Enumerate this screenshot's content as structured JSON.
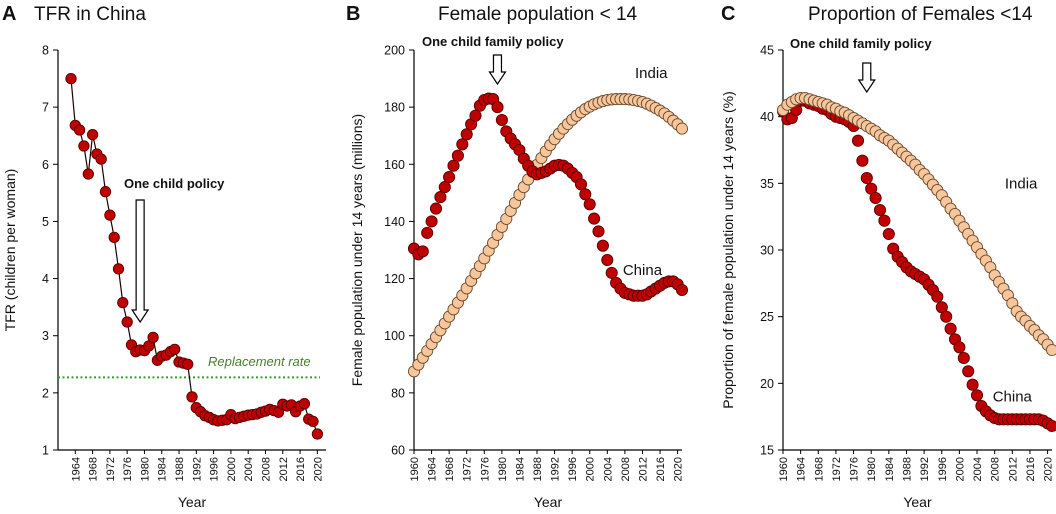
{
  "colors": {
    "china_fill": "#c00000",
    "china_edge": "#5a0000",
    "india_fill": "#f7c69a",
    "india_edge": "#6b4a30",
    "replacement_line": "#2ca02c",
    "replacement_text": "#4a7f2a",
    "axis": "#000000"
  },
  "panels": [
    {
      "letter": "A",
      "title": "TFR in China"
    },
    {
      "letter": "B",
      "title": "Female population < 14"
    },
    {
      "letter": "C",
      "title": "Proportion of Females <14"
    }
  ],
  "chart_data": [
    {
      "type": "scatter",
      "title": "TFR in China",
      "xlabel": "Year",
      "ylabel": "TFR (children per woman)",
      "xlim": [
        1960,
        2022
      ],
      "ylim": [
        1,
        8
      ],
      "yticks": [
        "1",
        "2",
        "3",
        "4",
        "5",
        "6",
        "7",
        "8"
      ],
      "xticks": [
        "1964",
        "1968",
        "1972",
        "1976",
        "1980",
        "1984",
        "1988",
        "1992",
        "1996",
        "2000",
        "2004",
        "2008",
        "2012",
        "2016",
        "2020"
      ],
      "xtick_values": [
        1964,
        1968,
        1972,
        1976,
        1980,
        1984,
        1988,
        1992,
        1996,
        2000,
        2004,
        2008,
        2012,
        2016,
        2020
      ],
      "annotation": "One child policy",
      "annotation_arrow_x": 1979,
      "reference_line": {
        "label": "Replacement rate",
        "y": 2.27
      },
      "series": [
        {
          "name": "China",
          "connected": true,
          "x": [
            1963,
            1964,
            1965,
            1966,
            1967,
            1968,
            1969,
            1970,
            1971,
            1972,
            1973,
            1974,
            1975,
            1976,
            1977,
            1978,
            1979,
            1980,
            1981,
            1982,
            1983,
            1984,
            1985,
            1986,
            1987,
            1988,
            1989,
            1990,
            1991,
            1992,
            1993,
            1994,
            1995,
            1996,
            1997,
            1998,
            1999,
            2000,
            2001,
            2002,
            2003,
            2004,
            2005,
            2006,
            2007,
            2008,
            2009,
            2010,
            2011,
            2012,
            2013,
            2014,
            2015,
            2016,
            2017,
            2018,
            2019,
            2020
          ],
          "y": [
            7.5,
            6.68,
            6.6,
            6.32,
            5.83,
            6.52,
            6.18,
            6.09,
            5.52,
            5.11,
            4.72,
            4.17,
            3.58,
            3.24,
            2.84,
            2.72,
            2.75,
            2.74,
            2.82,
            2.97,
            2.57,
            2.64,
            2.66,
            2.72,
            2.76,
            2.54,
            2.52,
            2.5,
            1.93,
            1.74,
            1.67,
            1.6,
            1.57,
            1.53,
            1.51,
            1.52,
            1.53,
            1.62,
            1.55,
            1.57,
            1.59,
            1.61,
            1.62,
            1.63,
            1.66,
            1.68,
            1.71,
            1.69,
            1.66,
            1.8,
            1.77,
            1.79,
            1.67,
            1.77,
            1.81,
            1.54,
            1.5,
            1.28
          ]
        }
      ]
    },
    {
      "type": "scatter",
      "title": "Female population < 14",
      "xlabel": "Year",
      "ylabel": "Female population under 14 years (millions)",
      "xlim": [
        1960,
        2021
      ],
      "ylim": [
        60,
        200
      ],
      "yticks": [
        "60",
        "80",
        "100",
        "120",
        "140",
        "160",
        "180",
        "200"
      ],
      "xticks": [
        "1960",
        "1964",
        "1968",
        "1972",
        "1976",
        "1980",
        "1984",
        "1988",
        "1992",
        "1996",
        "2000",
        "2004",
        "2008",
        "2012",
        "2016",
        "2020"
      ],
      "xtick_values": [
        1960,
        1964,
        1968,
        1972,
        1976,
        1980,
        1984,
        1988,
        1992,
        1996,
        2000,
        2004,
        2008,
        2012,
        2016,
        2020
      ],
      "annotation": "One child family policy",
      "annotation_arrow_x": 1979,
      "series": [
        {
          "name": "India",
          "label_x": 2014,
          "label_y": 192,
          "x": [
            1960,
            1961,
            1962,
            1963,
            1964,
            1965,
            1966,
            1967,
            1968,
            1969,
            1970,
            1971,
            1972,
            1973,
            1974,
            1975,
            1976,
            1977,
            1978,
            1979,
            1980,
            1981,
            1982,
            1983,
            1984,
            1985,
            1986,
            1987,
            1988,
            1989,
            1990,
            1991,
            1992,
            1993,
            1994,
            1995,
            1996,
            1997,
            1998,
            1999,
            2000,
            2001,
            2002,
            2003,
            2004,
            2005,
            2006,
            2007,
            2008,
            2009,
            2010,
            2011,
            2012,
            2013,
            2014,
            2015,
            2016,
            2017,
            2018,
            2019,
            2020,
            2021
          ],
          "y": [
            87.5,
            89.9,
            92.3,
            94.7,
            97.1,
            99.5,
            101.9,
            104.3,
            106.7,
            109.2,
            111.6,
            114.1,
            116.6,
            119.2,
            121.8,
            124.4,
            127.1,
            129.8,
            132.5,
            135.3,
            138.1,
            140.9,
            143.7,
            146.5,
            149.3,
            152.0,
            154.7,
            157.3,
            159.8,
            162.2,
            164.5,
            166.7,
            168.8,
            170.7,
            172.5,
            174.1,
            175.6,
            177.0,
            178.2,
            179.3,
            180.2,
            181.0,
            181.6,
            182.1,
            182.5,
            182.7,
            182.8,
            182.8,
            182.8,
            182.7,
            182.5,
            182.2,
            181.8,
            181.2,
            180.5,
            179.7,
            178.8,
            177.8,
            176.6,
            175.3,
            174.0,
            172.5
          ]
        },
        {
          "name": "China",
          "label_x": 2012,
          "label_y": 123,
          "x": [
            1960,
            1961,
            1962,
            1963,
            1964,
            1965,
            1966,
            1967,
            1968,
            1969,
            1970,
            1971,
            1972,
            1973,
            1974,
            1975,
            1976,
            1977,
            1978,
            1979,
            1980,
            1981,
            1982,
            1983,
            1984,
            1985,
            1986,
            1987,
            1988,
            1989,
            1990,
            1991,
            1992,
            1993,
            1994,
            1995,
            1996,
            1997,
            1998,
            1999,
            2000,
            2001,
            2002,
            2003,
            2004,
            2005,
            2006,
            2007,
            2008,
            2009,
            2010,
            2011,
            2012,
            2013,
            2014,
            2015,
            2016,
            2017,
            2018,
            2019,
            2020,
            2021
          ],
          "y": [
            130.5,
            128.5,
            129.5,
            136.0,
            140.0,
            144.5,
            148.5,
            152.0,
            155.5,
            159.5,
            163.0,
            167.0,
            170.5,
            174.0,
            177.0,
            180.5,
            182.5,
            183.0,
            182.8,
            180.0,
            175.5,
            171.5,
            169.0,
            167.0,
            165.0,
            162.0,
            159.5,
            157.5,
            156.5,
            157.0,
            157.5,
            158.5,
            159.5,
            159.8,
            159.5,
            158.5,
            157.0,
            155.5,
            153.0,
            149.5,
            146.0,
            141.0,
            136.5,
            131.5,
            126.5,
            122.0,
            118.5,
            116.5,
            115.0,
            114.5,
            114.0,
            114.0,
            114.0,
            114.5,
            115.5,
            116.5,
            117.5,
            118.5,
            119.0,
            119.0,
            118.0,
            116.0
          ]
        }
      ]
    },
    {
      "type": "scatter",
      "title": "Proportion of Females <14",
      "xlabel": "Year",
      "ylabel": "Proportion of female population under 14 years (%)",
      "xlim": [
        1960,
        2021
      ],
      "ylim": [
        15,
        45
      ],
      "yticks": [
        "15",
        "20",
        "25",
        "30",
        "35",
        "40",
        "45"
      ],
      "xticks": [
        "1960",
        "1964",
        "1968",
        "1972",
        "1976",
        "1980",
        "1984",
        "1988",
        "1992",
        "1996",
        "2000",
        "2004",
        "2008",
        "2012",
        "2016",
        "2020"
      ],
      "xtick_values": [
        1960,
        1964,
        1968,
        1972,
        1976,
        1980,
        1984,
        1988,
        1992,
        1996,
        2000,
        2004,
        2008,
        2012,
        2016,
        2020
      ],
      "annotation": "One child family policy",
      "annotation_arrow_x": 1979,
      "series": [
        {
          "name": "China",
          "label_x": 2012,
          "label_y": 19.0,
          "x": [
            1960,
            1961,
            1962,
            1963,
            1964,
            1965,
            1966,
            1967,
            1968,
            1969,
            1970,
            1971,
            1972,
            1973,
            1974,
            1975,
            1976,
            1977,
            1978,
            1979,
            1980,
            1981,
            1982,
            1983,
            1984,
            1985,
            1986,
            1987,
            1988,
            1989,
            1990,
            1991,
            1992,
            1993,
            1994,
            1995,
            1996,
            1997,
            1998,
            1999,
            2000,
            2001,
            2002,
            2003,
            2004,
            2005,
            2006,
            2007,
            2008,
            2009,
            2010,
            2011,
            2012,
            2013,
            2014,
            2015,
            2016,
            2017,
            2018,
            2019,
            2020,
            2021
          ],
          "y": [
            40.4,
            39.8,
            39.9,
            40.5,
            41.2,
            41.2,
            41.0,
            40.9,
            40.8,
            40.6,
            40.5,
            40.2,
            40.0,
            39.9,
            39.8,
            39.6,
            39.3,
            38.2,
            36.7,
            35.4,
            34.6,
            33.9,
            33.0,
            32.2,
            31.2,
            30.1,
            29.5,
            29.1,
            28.7,
            28.4,
            28.2,
            28.0,
            27.8,
            27.4,
            27.0,
            26.5,
            25.7,
            25.0,
            24.1,
            23.3,
            22.7,
            21.9,
            20.9,
            19.9,
            19.1,
            18.3,
            17.9,
            17.6,
            17.4,
            17.3,
            17.3,
            17.3,
            17.3,
            17.3,
            17.3,
            17.3,
            17.3,
            17.3,
            17.3,
            17.2,
            17.0,
            16.8
          ]
        },
        {
          "name": "India",
          "label_x": 2014,
          "label_y": 35.0,
          "x": [
            1960,
            1961,
            1962,
            1963,
            1964,
            1965,
            1966,
            1967,
            1968,
            1969,
            1970,
            1971,
            1972,
            1973,
            1974,
            1975,
            1976,
            1977,
            1978,
            1979,
            1980,
            1981,
            1982,
            1983,
            1984,
            1985,
            1986,
            1987,
            1988,
            1989,
            1990,
            1991,
            1992,
            1993,
            1994,
            1995,
            1996,
            1997,
            1998,
            1999,
            2000,
            2001,
            2002,
            2003,
            2004,
            2005,
            2006,
            2007,
            2008,
            2009,
            2010,
            2011,
            2012,
            2013,
            2014,
            2015,
            2016,
            2017,
            2018,
            2019,
            2020,
            2021
          ],
          "y": [
            40.5,
            40.9,
            41.1,
            41.3,
            41.4,
            41.4,
            41.3,
            41.2,
            41.1,
            41.0,
            40.9,
            40.7,
            40.6,
            40.4,
            40.3,
            40.1,
            39.9,
            39.7,
            39.5,
            39.3,
            39.1,
            38.9,
            38.6,
            38.4,
            38.2,
            37.9,
            37.6,
            37.3,
            37.0,
            36.7,
            36.4,
            36.0,
            35.7,
            35.3,
            34.9,
            34.5,
            34.1,
            33.6,
            33.1,
            32.7,
            32.2,
            31.7,
            31.2,
            30.7,
            30.2,
            29.7,
            29.2,
            28.7,
            28.1,
            27.6,
            27.1,
            26.6,
            26.0,
            25.4,
            25.0,
            24.7,
            24.3,
            24.0,
            23.6,
            23.3,
            22.9,
            22.5
          ]
        }
      ]
    }
  ]
}
